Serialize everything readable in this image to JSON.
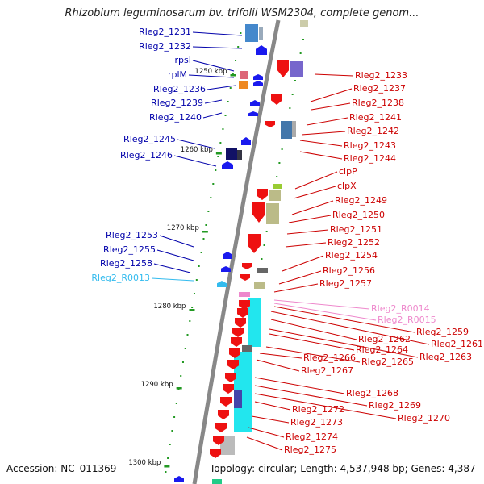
{
  "title": "Rhizobium leguminosarum bv. trifolii WSM2304, complete genom...",
  "footer": {
    "accession": "Accession: NC_011369",
    "summary": "Topology: circular; Length: 4,537,948 bp; Genes: 4,387"
  },
  "colors": {
    "forward_label": "#cc0000",
    "reverse_label": "#0000aa",
    "trna_label": "#33bbee",
    "rrna_label": "#ee88cc",
    "forward_gene": "#ee1111",
    "reverse_gene": "#1a1aee",
    "backbone": "#888888",
    "tick": "#229922"
  },
  "ticks": [
    "1250 kbp",
    "1260 kbp",
    "1270 kbp",
    "1280 kbp",
    "1290 kbp",
    "1300 kbp"
  ],
  "left_labels": [
    {
      "text": "Rleg2_1231",
      "type": "reverse"
    },
    {
      "text": "Rleg2_1232",
      "type": "reverse"
    },
    {
      "text": "rpsI",
      "type": "reverse"
    },
    {
      "text": "rplM",
      "type": "reverse"
    },
    {
      "text": "Rleg2_1236",
      "type": "reverse"
    },
    {
      "text": "Rleg2_1239",
      "type": "reverse"
    },
    {
      "text": "Rleg2_1240",
      "type": "reverse"
    },
    {
      "text": "Rleg2_1245",
      "type": "reverse"
    },
    {
      "text": "Rleg2_1246",
      "type": "reverse"
    },
    {
      "text": "Rleg2_1253",
      "type": "reverse"
    },
    {
      "text": "Rleg2_1255",
      "type": "reverse"
    },
    {
      "text": "Rleg2_1258",
      "type": "reverse"
    },
    {
      "text": "Rleg2_R0013",
      "type": "trna"
    }
  ],
  "right_labels": [
    {
      "text": "Rleg2_1233",
      "type": "forward"
    },
    {
      "text": "Rleg2_1237",
      "type": "forward"
    },
    {
      "text": "Rleg2_1238",
      "type": "forward"
    },
    {
      "text": "Rleg2_1241",
      "type": "forward"
    },
    {
      "text": "Rleg2_1242",
      "type": "forward"
    },
    {
      "text": "Rleg2_1243",
      "type": "forward"
    },
    {
      "text": "Rleg2_1244",
      "type": "forward"
    },
    {
      "text": "clpP",
      "type": "forward"
    },
    {
      "text": "clpX",
      "type": "forward"
    },
    {
      "text": "Rleg2_1249",
      "type": "forward"
    },
    {
      "text": "Rleg2_1250",
      "type": "forward"
    },
    {
      "text": "Rleg2_1251",
      "type": "forward"
    },
    {
      "text": "Rleg2_1252",
      "type": "forward"
    },
    {
      "text": "Rleg2_1254",
      "type": "forward"
    },
    {
      "text": "Rleg2_1256",
      "type": "forward"
    },
    {
      "text": "Rleg2_1257",
      "type": "forward"
    },
    {
      "text": "Rleg2_R0014",
      "type": "rrna"
    },
    {
      "text": "Rleg2_R0015",
      "type": "rrna"
    },
    {
      "text": "Rleg2_1259",
      "type": "forward"
    },
    {
      "text": "Rleg2_1261",
      "type": "forward"
    },
    {
      "text": "Rleg2_1262",
      "type": "forward"
    },
    {
      "text": "Rleg2_1263",
      "type": "forward"
    },
    {
      "text": "Rleg2_1264",
      "type": "forward"
    },
    {
      "text": "Rleg2_1265",
      "type": "forward"
    },
    {
      "text": "Rleg2_1266",
      "type": "forward"
    },
    {
      "text": "Rleg2_1267",
      "type": "forward"
    },
    {
      "text": "Rleg2_1268",
      "type": "forward"
    },
    {
      "text": "Rleg2_1269",
      "type": "forward"
    },
    {
      "text": "Rleg2_1270",
      "type": "forward"
    },
    {
      "text": "Rleg2_1272",
      "type": "forward"
    },
    {
      "text": "Rleg2_1273",
      "type": "forward"
    },
    {
      "text": "Rleg2_1274",
      "type": "forward"
    },
    {
      "text": "Rleg2_1275",
      "type": "forward"
    }
  ]
}
